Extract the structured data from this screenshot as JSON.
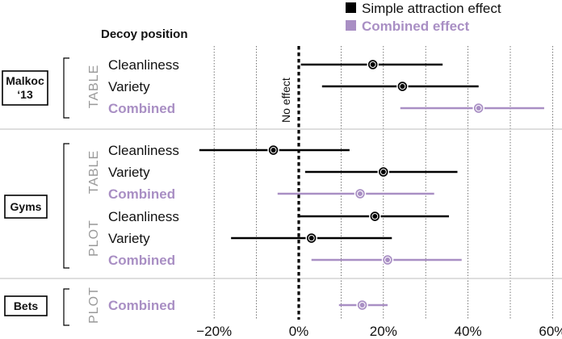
{
  "chart_data": {
    "type": "forest",
    "subtitle": "Decoy position",
    "zero_label": "No effect",
    "legend": [
      {
        "label": "Simple attraction effect",
        "color": "#000000"
      },
      {
        "label": "Combined effect",
        "color": "#a98fc4"
      }
    ],
    "x_ticks": [
      "−20%",
      "0%",
      "20%",
      "40%",
      "60%"
    ],
    "x_tick_values": [
      -20,
      0,
      20,
      40,
      60
    ],
    "xlim": [
      -28,
      62
    ],
    "gridlines": [
      -20,
      -10,
      0,
      10,
      20,
      30,
      40,
      50,
      60
    ],
    "groups": [
      {
        "name": "Malkoc '13",
        "name_lines": [
          "Malkoc",
          "‘13"
        ]
      },
      {
        "name": "Gyms",
        "name_lines": [
          "Gyms"
        ]
      },
      {
        "name": "Bets",
        "name_lines": [
          "Bets"
        ]
      }
    ],
    "conditions": [
      {
        "label": "TABLE",
        "group": 0
      },
      {
        "label": "TABLE",
        "group": 1
      },
      {
        "label": "PLOT",
        "group": 1
      },
      {
        "label": "PLOT",
        "group": 2
      }
    ],
    "rows": [
      {
        "label": "Cleanliness",
        "type": "simple",
        "estimate": 17.5,
        "lower": 0.5,
        "upper": 34
      },
      {
        "label": "Variety",
        "type": "simple",
        "estimate": 24.5,
        "lower": 5.5,
        "upper": 42.5
      },
      {
        "label": "Combined",
        "type": "combined",
        "estimate": 42.5,
        "lower": 24,
        "upper": 58
      },
      {
        "label": "Cleanliness",
        "type": "simple",
        "estimate": -6,
        "lower": -23.5,
        "upper": 12
      },
      {
        "label": "Variety",
        "type": "simple",
        "estimate": 20,
        "lower": 1.5,
        "upper": 37.5
      },
      {
        "label": "Combined",
        "type": "combined",
        "estimate": 14.5,
        "lower": -5,
        "upper": 32
      },
      {
        "label": "Cleanliness",
        "type": "simple",
        "estimate": 18,
        "lower": 0,
        "upper": 35.5
      },
      {
        "label": "Variety",
        "type": "simple",
        "estimate": 3,
        "lower": -16,
        "upper": 22
      },
      {
        "label": "Combined",
        "type": "combined",
        "estimate": 21,
        "lower": 3,
        "upper": 38.5
      },
      {
        "label": "Combined",
        "type": "combined",
        "estimate": 15,
        "lower": 9.5,
        "upper": 21
      }
    ]
  }
}
